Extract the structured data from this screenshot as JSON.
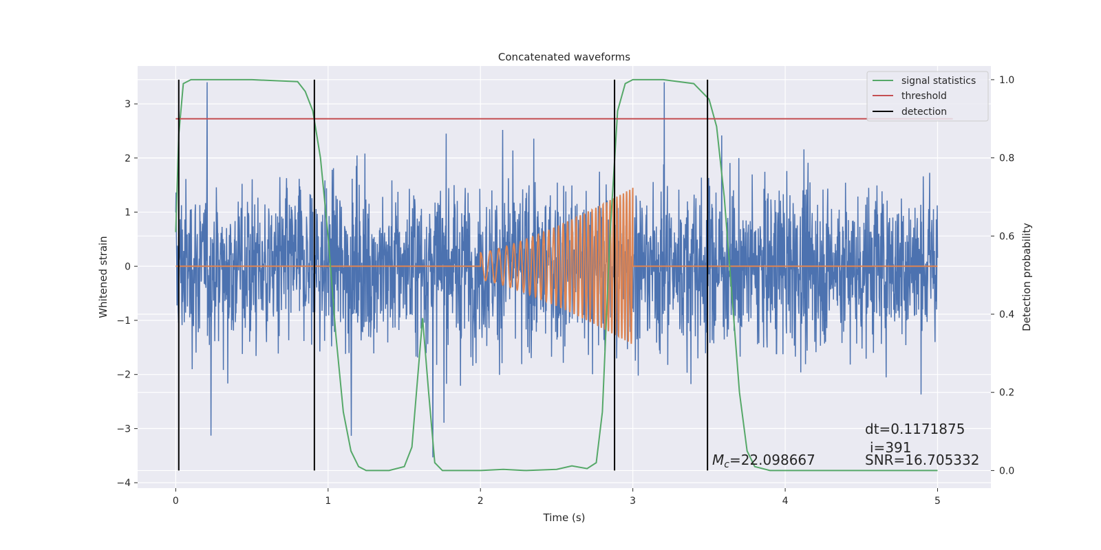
{
  "chart_data": {
    "type": "line",
    "title": "Concatenated waveforms",
    "xlabel": "Time (s)",
    "ylabel": "Whitened strain",
    "y2label": "Detection probability",
    "xlim": [
      -0.25,
      5.35
    ],
    "ylim": [
      -4.1,
      3.7
    ],
    "y2lim": [
      -0.045,
      1.035
    ],
    "xticks": [
      "0",
      "1",
      "2",
      "3",
      "4",
      "5"
    ],
    "xtick_values": [
      0,
      1,
      2,
      3,
      4,
      5
    ],
    "yticks": [
      "−4",
      "−3",
      "−2",
      "−1",
      "0",
      "1",
      "2",
      "3"
    ],
    "ytick_values": [
      -4,
      -3,
      -2,
      -1,
      0,
      1,
      2,
      3
    ],
    "y2ticks": [
      "0.0",
      "0.2",
      "0.4",
      "0.6",
      "0.8",
      "1.0"
    ],
    "y2tick_values": [
      0,
      0.2,
      0.4,
      0.6,
      0.8,
      1.0
    ],
    "grid": true,
    "legend_position": "top-right",
    "legend": [
      {
        "label": "signal statistics",
        "color": "#55a868"
      },
      {
        "label": "threshold",
        "color": "#c44e52"
      },
      {
        "label": "detection",
        "color": "#000000"
      }
    ],
    "colors": {
      "noise": "#4c72b0",
      "injected_signal": "#dd8452",
      "signal_statistics": "#55a868",
      "threshold": "#c44e52",
      "detection": "#000000",
      "plot_background": "#eaeaf2",
      "grid": "#ffffff"
    },
    "series": [
      {
        "name": "signal statistics",
        "axis": "right",
        "x": [
          0.0,
          0.02,
          0.05,
          0.1,
          0.2,
          0.5,
          0.8,
          0.85,
          0.9,
          0.95,
          1.0,
          1.05,
          1.1,
          1.15,
          1.2,
          1.25,
          1.4,
          1.5,
          1.55,
          1.58,
          1.62,
          1.66,
          1.7,
          1.75,
          1.8,
          2.0,
          2.15,
          2.3,
          2.5,
          2.6,
          2.7,
          2.76,
          2.8,
          2.85,
          2.9,
          2.95,
          3.0,
          3.2,
          3.4,
          3.5,
          3.55,
          3.6,
          3.65,
          3.7,
          3.75,
          3.8,
          3.9,
          4.5,
          5.0
        ],
        "y": [
          0.61,
          0.86,
          0.99,
          1.0,
          1.0,
          1.0,
          0.995,
          0.97,
          0.92,
          0.8,
          0.6,
          0.35,
          0.15,
          0.05,
          0.01,
          0.0,
          0.0,
          0.01,
          0.06,
          0.2,
          0.39,
          0.2,
          0.02,
          0.0,
          0.0,
          0.0,
          0.003,
          0.0,
          0.003,
          0.012,
          0.005,
          0.02,
          0.15,
          0.6,
          0.92,
          0.99,
          1.0,
          1.0,
          0.99,
          0.95,
          0.88,
          0.7,
          0.45,
          0.2,
          0.05,
          0.01,
          0.0,
          0.0,
          0.0
        ]
      },
      {
        "name": "threshold",
        "axis": "right",
        "x": [
          0.0,
          5.1
        ],
        "y": [
          0.9,
          0.9
        ]
      }
    ],
    "detections": [
      0.02,
      0.91,
      2.88,
      3.49
    ],
    "noise": {
      "t_start": 0.0,
      "t_end": 5.0,
      "amplitude_std": 0.75
    },
    "injected_signal": {
      "t_start": 2.0,
      "t_end": 3.0,
      "amp_start": 0.25,
      "amp_end": 1.45,
      "cycles": 32
    },
    "annotations": {
      "mc_symbol": "M",
      "mc_sub": "c",
      "mc_value": "=22.098667",
      "dt": "dt=0.1171875",
      "i": "i=391",
      "snr": "SNR=16.705332"
    }
  }
}
